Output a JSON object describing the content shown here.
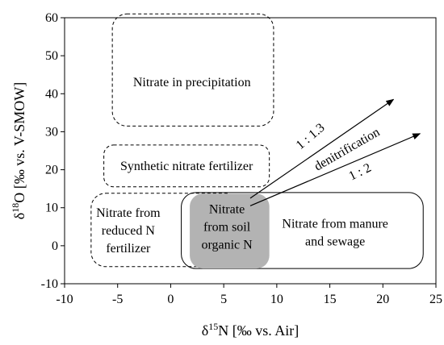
{
  "chart_data": {
    "type": "scatter",
    "title": "",
    "xlim": [
      -10,
      25
    ],
    "ylim": [
      -10,
      60
    ],
    "xticks": [
      "-10",
      "-5",
      "0",
      "5",
      "10",
      "15",
      "20",
      "25"
    ],
    "yticks": [
      "-10",
      "0",
      "10",
      "20",
      "30",
      "40",
      "50",
      "60"
    ],
    "grid": false,
    "xlabel": {
      "prefix": "δ",
      "sup": "15",
      "rest": "N [‰ vs. Air]"
    },
    "ylabel": {
      "prefix": "δ",
      "sup": "18",
      "rest": "O [‰ vs. V-SMOW]"
    },
    "regions": [
      {
        "name": "precipitation",
        "lines": [
          "Nitrate in precipitation"
        ],
        "x": [
          -5.5,
          9.7
        ],
        "y": [
          31.5,
          61
        ],
        "style": "dashed",
        "fill": "none",
        "radius": 18,
        "label_at": [
          2,
          43
        ]
      },
      {
        "name": "synthetic",
        "lines": [
          "Synthetic nitrate fertilizer"
        ],
        "x": [
          -6.3,
          9.3
        ],
        "y": [
          15.5,
          26.5
        ],
        "style": "dashed",
        "fill": "none",
        "radius": 12,
        "label_at": [
          1.5,
          21
        ]
      },
      {
        "name": "reduced",
        "lines": [
          "Nitrate from",
          "reduced N",
          "fertilizer"
        ],
        "x": [
          -7.5,
          6.5
        ],
        "y": [
          -5.5,
          13.8
        ],
        "style": "dashed",
        "fill": "none",
        "radius": 18,
        "label_at": [
          -4,
          4
        ]
      },
      {
        "name": "manure",
        "lines": [
          "Nitrate from manure",
          "and sewage"
        ],
        "x": [
          1,
          23.8
        ],
        "y": [
          -6,
          14
        ],
        "style": "solid",
        "fill": "none",
        "radius": 18,
        "label_at": [
          15.5,
          3.5
        ]
      },
      {
        "name": "soil",
        "lines": [
          "Nitrate",
          "from soil",
          "organic N"
        ],
        "x": [
          1.8,
          9.3
        ],
        "y": [
          -6,
          13.7
        ],
        "style": "none",
        "fill": "#b3b3b3",
        "radius": 16,
        "label_at": [
          5.3,
          5
        ]
      }
    ],
    "arrows": [
      {
        "name": "ratio-1-1.3",
        "from": [
          7.5,
          12.5
        ],
        "to": [
          21,
          38.5
        ]
      },
      {
        "name": "ratio-1-2",
        "from": [
          7.5,
          10.5
        ],
        "to": [
          23.5,
          29.5
        ]
      }
    ],
    "annotations": [
      {
        "name": "ratio-1-1.3-label",
        "text": "1 : 1.3",
        "at": [
          13.4,
          28
        ],
        "angle": -40
      },
      {
        "name": "denitrification-label",
        "text": "denitrification",
        "at": [
          16.8,
          24.5
        ],
        "angle": -30
      },
      {
        "name": "ratio-1-2-label",
        "text": "1 : 2",
        "at": [
          18,
          18.5
        ],
        "angle": -26
      }
    ]
  }
}
